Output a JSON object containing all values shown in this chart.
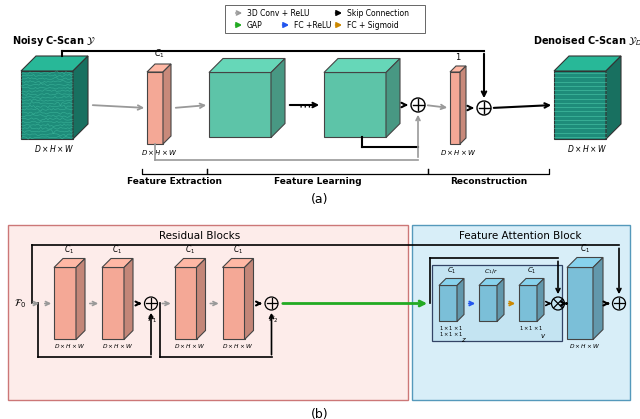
{
  "bg_color": "#ffffff",
  "salmon_color": "#F4A896",
  "green_box_color": "#5DC4A8",
  "blue_box_color": "#7BBFD8",
  "light_pink_bg": "#FDECEA",
  "light_blue_bg": "#D8EEF8",
  "gray_arrow": "#999999",
  "black": "#000000",
  "green_arrow": "#22AA22",
  "blue_arrow": "#2255EE",
  "orange_arrow": "#CC8800",
  "noisy_label": "Noisy C-Scan $\\mathcal{Y}$",
  "denoised_label": "Denoised C-Scan $\\mathcal{Y}_D$",
  "dim_label": "$D \\times H \\times W$",
  "feat_extract": "Feature Extraction",
  "feat_learn": "Feature Learning",
  "recon": "Reconstruction",
  "residual_blocks": "Residual Blocks",
  "feature_attention": "Feature Attention Block",
  "title_a": "(a)",
  "title_b": "(b)"
}
